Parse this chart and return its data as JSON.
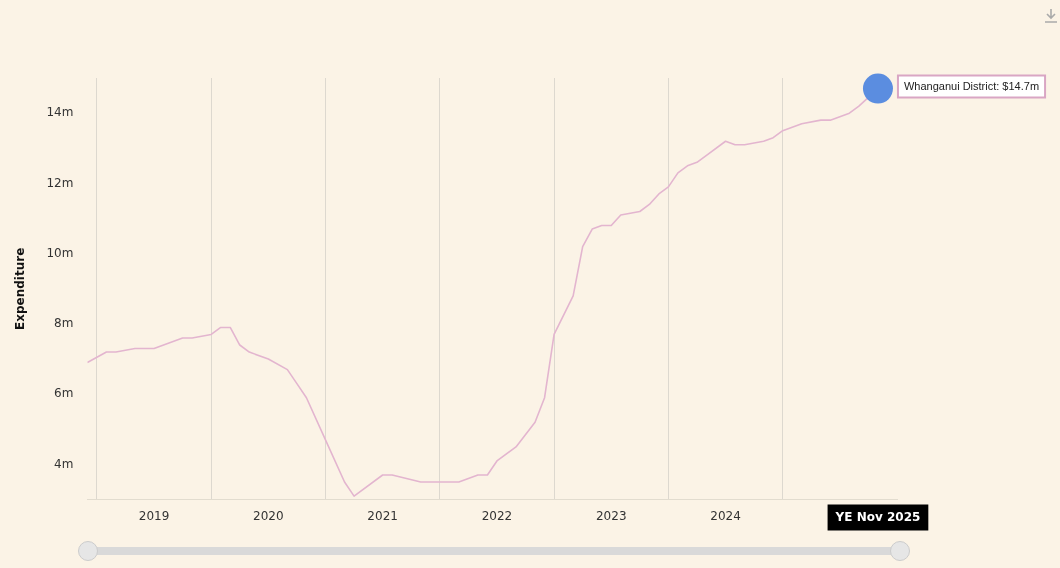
{
  "chart_data": {
    "type": "line",
    "ylabel": "Expenditure",
    "x": [
      "2018-12",
      "2019-02",
      "2019-03",
      "2019-05",
      "2019-07",
      "2019-10",
      "2019-11",
      "2020-01",
      "2020-02",
      "2020-03",
      "2020-04",
      "2020-05",
      "2020-07",
      "2020-09",
      "2020-10",
      "2020-11",
      "2021-01",
      "2021-03",
      "2021-04",
      "2021-07",
      "2021-08",
      "2021-11",
      "2022-01",
      "2022-03",
      "2022-05",
      "2022-06",
      "2022-07",
      "2022-09",
      "2022-11",
      "2022-12",
      "2023-01",
      "2023-03",
      "2023-04",
      "2023-05",
      "2023-06",
      "2023-07",
      "2023-08",
      "2023-10",
      "2023-11",
      "2023-12",
      "2024-01",
      "2024-02",
      "2024-03",
      "2024-04",
      "2024-05",
      "2024-07",
      "2024-08",
      "2024-09",
      "2024-11",
      "2024-12",
      "2025-01",
      "2025-02",
      "2025-03",
      "2025-05",
      "2025-06",
      "2025-07",
      "2025-08",
      "2025-09",
      "2025-11"
    ],
    "series": [
      {
        "color": "#e3b5cf",
        "values": [
          6.9,
          7.2,
          7.2,
          7.3,
          7.3,
          7.6,
          7.6,
          7.7,
          7.9,
          7.9,
          7.4,
          7.2,
          7.0,
          6.7,
          6.3,
          5.9,
          4.7,
          3.5,
          3.1,
          3.7,
          3.7,
          3.5,
          3.5,
          3.5,
          3.7,
          3.7,
          4.1,
          4.5,
          5.2,
          5.9,
          7.7,
          8.8,
          10.2,
          10.7,
          10.8,
          10.8,
          11.1,
          11.2,
          11.4,
          11.7,
          11.9,
          12.3,
          12.5,
          12.6,
          12.8,
          13.2,
          13.1,
          13.1,
          13.2,
          13.3,
          13.5,
          13.6,
          13.7,
          13.8,
          13.8,
          13.9,
          14.0,
          14.2,
          14.7
        ]
      }
    ],
    "xlim": [
      "2018-12",
      "2026-01"
    ],
    "xticks": [
      {
        "value": "2019-01",
        "label": null
      },
      {
        "value": "2019-07",
        "label": "2019"
      },
      {
        "value": "2020-01",
        "label": null
      },
      {
        "value": "2020-07",
        "label": "2020"
      },
      {
        "value": "2021-01",
        "label": null
      },
      {
        "value": "2021-07",
        "label": "2021"
      },
      {
        "value": "2022-01",
        "label": null
      },
      {
        "value": "2022-07",
        "label": "2022"
      },
      {
        "value": "2023-01",
        "label": null
      },
      {
        "value": "2023-07",
        "label": "2023"
      },
      {
        "value": "2024-01",
        "label": null
      },
      {
        "value": "2024-07",
        "label": "2024"
      },
      {
        "value": "2025-01",
        "label": null
      }
    ],
    "ylim": [
      3,
      15
    ],
    "yticks": [
      {
        "value": 4,
        "label": "4m"
      },
      {
        "value": 6,
        "label": "6m"
      },
      {
        "value": 8,
        "label": "8m"
      },
      {
        "value": 10,
        "label": "10m"
      },
      {
        "value": 12,
        "label": "12m"
      },
      {
        "value": 14,
        "label": "14m"
      }
    ],
    "grid": "x",
    "legend": false,
    "marker": "none",
    "line_style": "solid",
    "annotations": [
      {
        "text": "Whanganui District: $14.7m",
        "x": "2025-11",
        "y": 14.7
      },
      "YE Nov 2025"
    ]
  }
}
